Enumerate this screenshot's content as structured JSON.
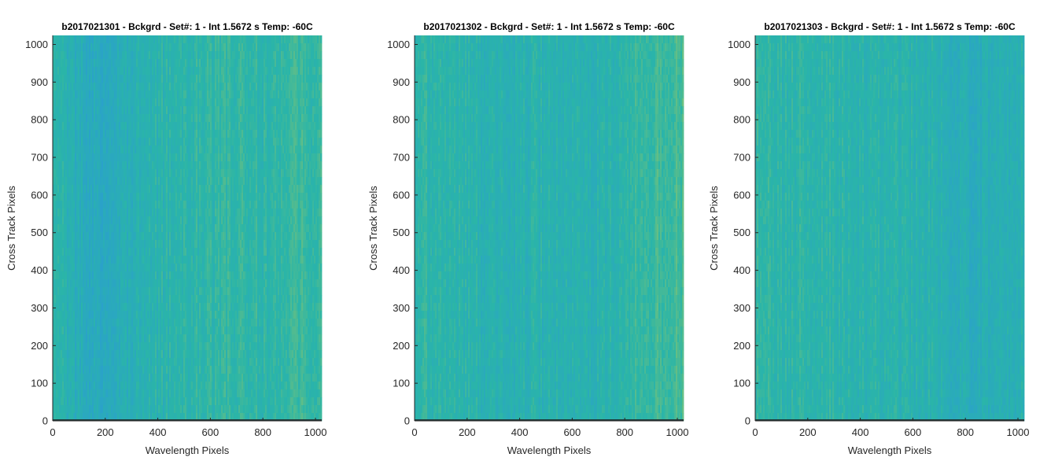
{
  "chart_data": [
    {
      "type": "heatmap",
      "title": "b2017021301 - Bckgrd - Set#: 1 - Int 1.5672 s Temp: -60C",
      "xlabel": "Wavelength Pixels",
      "ylabel": "Cross Track Pixels",
      "xlim": [
        0,
        1024
      ],
      "ylim": [
        0,
        1024
      ],
      "xticks": [
        0,
        200,
        400,
        600,
        800,
        1000
      ],
      "yticks": [
        0,
        100,
        200,
        300,
        400,
        500,
        600,
        700,
        800,
        900,
        1000
      ],
      "colormap": "parula",
      "column_profile": [
        0.45,
        0.36,
        0.28,
        0.22,
        0.26,
        0.34,
        0.4,
        0.44,
        0.46,
        0.48,
        0.5,
        0.52,
        0.52,
        0.5,
        0.5,
        0.56,
        0.58,
        0.55
      ]
    },
    {
      "type": "heatmap",
      "title": "b2017021302 - Bckgrd - Set#: 1 - Int 1.5672 s Temp: -60C",
      "xlabel": "Wavelength Pixels",
      "ylabel": "Cross Track Pixels",
      "xlim": [
        0,
        1024
      ],
      "ylim": [
        0,
        1024
      ],
      "xticks": [
        0,
        200,
        400,
        600,
        800,
        1000
      ],
      "yticks": [
        0,
        100,
        200,
        300,
        400,
        500,
        600,
        700,
        800,
        900,
        1000
      ],
      "colormap": "parula",
      "column_profile": [
        0.48,
        0.5,
        0.48,
        0.45,
        0.43,
        0.4,
        0.38,
        0.4,
        0.42,
        0.4,
        0.38,
        0.4,
        0.43,
        0.48,
        0.55,
        0.6,
        0.64,
        0.66
      ]
    },
    {
      "type": "heatmap",
      "title": "b2017021303 - Bckgrd - Set#: 1 - Int 1.5672 s Temp: -60C",
      "xlabel": "Wavelength Pixels",
      "ylabel": "Cross Track Pixels",
      "xlim": [
        0,
        1024
      ],
      "ylim": [
        0,
        1024
      ],
      "xticks": [
        0,
        200,
        400,
        600,
        800,
        1000
      ],
      "yticks": [
        0,
        100,
        200,
        300,
        400,
        500,
        600,
        700,
        800,
        900,
        1000
      ],
      "colormap": "parula",
      "column_profile": [
        0.52,
        0.5,
        0.48,
        0.5,
        0.5,
        0.48,
        0.46,
        0.45,
        0.46,
        0.44,
        0.42,
        0.4,
        0.36,
        0.32,
        0.3,
        0.34,
        0.38,
        0.42
      ]
    }
  ],
  "colors": {
    "low": "#2a9fcf",
    "mid": "#2ab5a8",
    "high": "#8cc56c",
    "baseline": "#1f3a3a",
    "axis": "#262626"
  }
}
